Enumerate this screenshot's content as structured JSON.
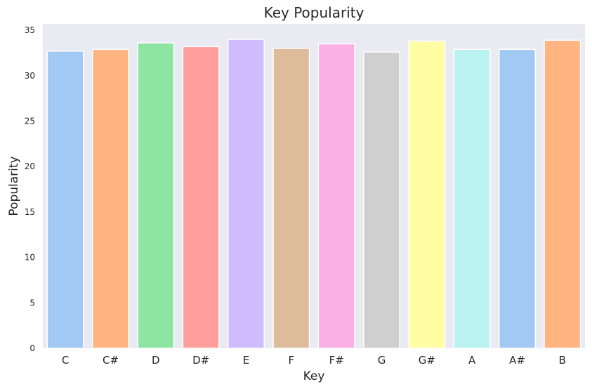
{
  "chart_data": {
    "type": "bar",
    "title": "Key Popularity",
    "xlabel": "Key",
    "ylabel": "Popularity",
    "categories": [
      "C",
      "C#",
      "D",
      "D#",
      "E",
      "F",
      "F#",
      "G",
      "G#",
      "A",
      "A#",
      "B"
    ],
    "values": [
      32.7,
      32.9,
      33.6,
      33.2,
      34.0,
      33.0,
      33.5,
      32.6,
      33.8,
      32.9,
      32.9,
      33.9
    ],
    "colors": [
      "#a1c9f4",
      "#ffb482",
      "#8de5a1",
      "#ff9f9b",
      "#d0bbff",
      "#debb9b",
      "#fab0e4",
      "#cfcfcf",
      "#fffea3",
      "#b9f2f0",
      "#a1c9f4",
      "#ffb482"
    ],
    "ylim": [
      0,
      35.7
    ],
    "yticks": [
      0,
      5,
      10,
      15,
      20,
      25,
      30,
      35
    ],
    "grid": false,
    "plot_background": "#eaeaf2"
  }
}
